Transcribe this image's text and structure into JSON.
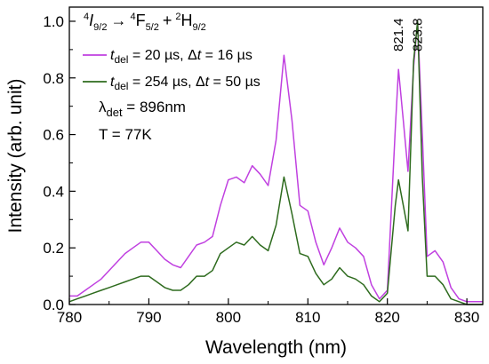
{
  "chart_data": {
    "type": "line",
    "xlabel": "Wavelength (nm)",
    "ylabel": "Intensity (arb. unit)",
    "xlim": [
      780,
      832
    ],
    "ylim": [
      0,
      1.05
    ],
    "xticks": [
      780,
      790,
      800,
      810,
      820,
      830
    ],
    "yticks": [
      0.0,
      0.2,
      0.4,
      0.6,
      0.8,
      1.0
    ],
    "xtick_labels": [
      "780",
      "790",
      "800",
      "810",
      "820",
      "830"
    ],
    "ytick_labels": [
      "0.0",
      "0.2",
      "0.4",
      "0.6",
      "0.8",
      "1.0"
    ],
    "grid": false,
    "legend_position": "top-left",
    "title": {
      "parts": [
        "4",
        "I",
        "9/2",
        "→",
        "4",
        "F",
        "5/2",
        "+",
        "2",
        "H",
        "9/2"
      ]
    },
    "series": [
      {
        "name": "t_del = 20 µs, Δt = 16 µs",
        "name_parts": [
          "t",
          "del",
          " = 20 µs, ",
          "Δ",
          "t",
          " = 16 µs"
        ],
        "color": "#c040e0",
        "x": [
          780,
          781,
          782,
          783,
          784,
          785,
          786,
          787,
          788,
          789,
          790,
          791,
          792,
          793,
          794,
          795,
          796,
          797,
          798,
          799,
          800,
          801,
          802,
          803,
          804,
          805,
          806,
          807,
          808,
          809,
          810,
          811,
          812,
          813,
          814,
          815,
          816,
          817,
          818,
          819,
          820,
          821,
          821.4,
          822,
          822.6,
          823.3,
          823.8,
          824.4,
          825,
          826,
          827,
          828,
          829,
          830,
          831,
          832
        ],
        "y": [
          0.03,
          0.03,
          0.05,
          0.07,
          0.09,
          0.12,
          0.15,
          0.18,
          0.2,
          0.22,
          0.22,
          0.19,
          0.16,
          0.14,
          0.13,
          0.17,
          0.21,
          0.22,
          0.24,
          0.35,
          0.44,
          0.45,
          0.43,
          0.49,
          0.46,
          0.42,
          0.58,
          0.88,
          0.65,
          0.35,
          0.33,
          0.22,
          0.14,
          0.2,
          0.27,
          0.22,
          0.2,
          0.17,
          0.07,
          0.02,
          0.05,
          0.62,
          0.83,
          0.65,
          0.47,
          0.84,
          1.0,
          0.6,
          0.17,
          0.19,
          0.15,
          0.06,
          0.02,
          0.01,
          0.01,
          0.01
        ]
      },
      {
        "name": "t_del = 254 µs, Δt = 50 µs",
        "name_parts": [
          "t",
          "del",
          " = 254 µs, ",
          "Δ",
          "t",
          " = 50 µs"
        ],
        "color": "#2e6b1e",
        "x": [
          780,
          781,
          782,
          783,
          784,
          785,
          786,
          787,
          788,
          789,
          790,
          791,
          792,
          793,
          794,
          795,
          796,
          797,
          798,
          799,
          800,
          801,
          802,
          803,
          804,
          805,
          806,
          807,
          808,
          809,
          810,
          811,
          812,
          813,
          814,
          815,
          816,
          817,
          818,
          819,
          820,
          821,
          821.4,
          822,
          822.6,
          823.3,
          823.8,
          824.4,
          825,
          826,
          827,
          828,
          829,
          830,
          831,
          832
        ],
        "y": [
          0.01,
          0.02,
          0.03,
          0.04,
          0.05,
          0.06,
          0.07,
          0.08,
          0.09,
          0.1,
          0.1,
          0.08,
          0.06,
          0.05,
          0.05,
          0.07,
          0.1,
          0.1,
          0.12,
          0.18,
          0.2,
          0.22,
          0.21,
          0.24,
          0.21,
          0.19,
          0.28,
          0.45,
          0.32,
          0.18,
          0.17,
          0.11,
          0.07,
          0.09,
          0.13,
          0.1,
          0.09,
          0.07,
          0.03,
          0.01,
          0.04,
          0.35,
          0.44,
          0.35,
          0.26,
          0.86,
          1.0,
          0.45,
          0.1,
          0.1,
          0.07,
          0.02,
          0.01,
          0.0,
          0.0,
          0.0
        ]
      }
    ],
    "annotations": {
      "lambda_det": "λdet = 896nm",
      "lambda_det_parts": [
        "λ",
        "det",
        " = 896nm"
      ],
      "temperature": "T = 77K",
      "peak_labels": [
        "821.4",
        "823.8"
      ]
    }
  }
}
